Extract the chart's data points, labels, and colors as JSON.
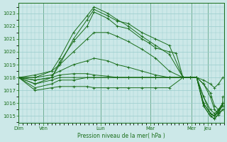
{
  "background_color": "#cce8e8",
  "grid_color": "#99cccc",
  "line_color": "#1a6e1a",
  "xlabel": "Pression niveau de la mer( hPa )",
  "ylim": [
    1014.5,
    1023.8
  ],
  "yticks": [
    1015,
    1016,
    1017,
    1018,
    1019,
    1020,
    1021,
    1022,
    1023
  ],
  "day_labels": [
    "Dim",
    "Ven",
    "Lun",
    "Mar",
    "Mer",
    "Jeu"
  ],
  "total_hours": 150,
  "series": [
    {
      "points": [
        [
          0,
          1018.0
        ],
        [
          12,
          1017.5
        ],
        [
          24,
          1018.0
        ],
        [
          30,
          1019.2
        ],
        [
          40,
          1020.8
        ],
        [
          50,
          1022.0
        ],
        [
          55,
          1023.1
        ],
        [
          65,
          1022.6
        ],
        [
          72,
          1022.0
        ],
        [
          80,
          1021.8
        ],
        [
          90,
          1021.0
        ],
        [
          95,
          1020.7
        ],
        [
          100,
          1020.3
        ],
        [
          110,
          1020.0
        ],
        [
          115,
          1019.9
        ],
        [
          120,
          1018.0
        ],
        [
          125,
          1018.0
        ],
        [
          130,
          1018.0
        ],
        [
          135,
          1016.0
        ],
        [
          140,
          1015.2
        ],
        [
          143,
          1015.0
        ],
        [
          146,
          1015.4
        ],
        [
          149,
          1015.8
        ]
      ]
    },
    {
      "points": [
        [
          0,
          1018.0
        ],
        [
          12,
          1017.8
        ],
        [
          24,
          1018.0
        ],
        [
          30,
          1019.0
        ],
        [
          40,
          1021.0
        ],
        [
          50,
          1022.5
        ],
        [
          55,
          1023.3
        ],
        [
          65,
          1022.8
        ],
        [
          72,
          1022.4
        ],
        [
          80,
          1022.2
        ],
        [
          90,
          1021.5
        ],
        [
          100,
          1021.0
        ],
        [
          110,
          1020.5
        ],
        [
          120,
          1018.0
        ],
        [
          125,
          1018.0
        ],
        [
          130,
          1018.0
        ],
        [
          135,
          1016.5
        ],
        [
          140,
          1015.2
        ],
        [
          143,
          1015.0
        ],
        [
          146,
          1015.5
        ],
        [
          149,
          1016.0
        ]
      ]
    },
    {
      "points": [
        [
          0,
          1018.0
        ],
        [
          12,
          1018.0
        ],
        [
          24,
          1018.5
        ],
        [
          30,
          1019.5
        ],
        [
          40,
          1021.5
        ],
        [
          50,
          1022.8
        ],
        [
          55,
          1023.5
        ],
        [
          65,
          1023.0
        ],
        [
          72,
          1022.5
        ],
        [
          80,
          1022.0
        ],
        [
          90,
          1021.2
        ],
        [
          100,
          1020.5
        ],
        [
          110,
          1019.8
        ],
        [
          120,
          1018.0
        ],
        [
          125,
          1018.0
        ],
        [
          130,
          1018.0
        ],
        [
          135,
          1015.8
        ],
        [
          140,
          1015.0
        ],
        [
          143,
          1014.8
        ],
        [
          146,
          1015.2
        ],
        [
          149,
          1016.0
        ]
      ]
    },
    {
      "points": [
        [
          0,
          1018.0
        ],
        [
          12,
          1018.2
        ],
        [
          24,
          1018.5
        ],
        [
          30,
          1019.0
        ],
        [
          40,
          1020.0
        ],
        [
          50,
          1021.0
        ],
        [
          55,
          1021.5
        ],
        [
          65,
          1021.5
        ],
        [
          72,
          1021.2
        ],
        [
          80,
          1020.8
        ],
        [
          90,
          1020.2
        ],
        [
          100,
          1019.5
        ],
        [
          110,
          1018.5
        ],
        [
          120,
          1018.0
        ],
        [
          125,
          1018.0
        ],
        [
          130,
          1018.0
        ],
        [
          135,
          1017.5
        ],
        [
          140,
          1016.8
        ],
        [
          143,
          1015.8
        ],
        [
          146,
          1015.5
        ],
        [
          149,
          1015.8
        ],
        [
          149,
          1016.5
        ]
      ]
    },
    {
      "points": [
        [
          0,
          1018.0
        ],
        [
          12,
          1018.0
        ],
        [
          24,
          1018.2
        ],
        [
          30,
          1018.5
        ],
        [
          40,
          1019.0
        ],
        [
          50,
          1019.3
        ],
        [
          55,
          1019.5
        ],
        [
          65,
          1019.3
        ],
        [
          72,
          1019.0
        ],
        [
          80,
          1018.8
        ],
        [
          90,
          1018.5
        ],
        [
          100,
          1018.2
        ],
        [
          110,
          1018.0
        ],
        [
          120,
          1018.0
        ],
        [
          125,
          1018.0
        ],
        [
          130,
          1018.0
        ],
        [
          135,
          1017.8
        ],
        [
          140,
          1017.5
        ],
        [
          143,
          1017.2
        ],
        [
          146,
          1017.5
        ],
        [
          149,
          1018.0
        ]
      ]
    },
    {
      "points": [
        [
          0,
          1018.0
        ],
        [
          12,
          1017.8
        ],
        [
          24,
          1018.0
        ],
        [
          30,
          1018.2
        ],
        [
          40,
          1018.3
        ],
        [
          50,
          1018.3
        ],
        [
          55,
          1018.2
        ],
        [
          65,
          1018.1
        ],
        [
          72,
          1018.0
        ],
        [
          80,
          1018.0
        ],
        [
          90,
          1018.0
        ],
        [
          100,
          1018.0
        ],
        [
          110,
          1018.0
        ],
        [
          120,
          1018.0
        ],
        [
          125,
          1018.0
        ],
        [
          130,
          1018.0
        ],
        [
          135,
          1017.5
        ],
        [
          140,
          1016.5
        ],
        [
          143,
          1015.5
        ],
        [
          146,
          1015.2
        ],
        [
          149,
          1015.5
        ]
      ]
    },
    {
      "points": [
        [
          0,
          1018.0
        ],
        [
          12,
          1017.5
        ],
        [
          24,
          1017.8
        ],
        [
          30,
          1018.0
        ],
        [
          40,
          1018.0
        ],
        [
          50,
          1018.0
        ],
        [
          55,
          1018.0
        ],
        [
          65,
          1018.0
        ],
        [
          72,
          1018.0
        ],
        [
          80,
          1018.0
        ],
        [
          90,
          1018.0
        ],
        [
          100,
          1018.0
        ],
        [
          110,
          1018.0
        ],
        [
          120,
          1018.0
        ],
        [
          125,
          1018.0
        ],
        [
          130,
          1018.0
        ],
        [
          135,
          1016.5
        ],
        [
          140,
          1015.5
        ],
        [
          143,
          1015.2
        ],
        [
          146,
          1015.5
        ],
        [
          149,
          1016.0
        ]
      ]
    },
    {
      "points": [
        [
          0,
          1018.0
        ],
        [
          12,
          1017.2
        ],
        [
          24,
          1017.5
        ],
        [
          30,
          1017.8
        ],
        [
          40,
          1017.8
        ],
        [
          50,
          1018.0
        ],
        [
          55,
          1018.0
        ],
        [
          65,
          1018.0
        ],
        [
          72,
          1018.0
        ],
        [
          80,
          1018.0
        ],
        [
          90,
          1018.0
        ],
        [
          100,
          1018.0
        ],
        [
          110,
          1018.0
        ],
        [
          120,
          1018.0
        ],
        [
          125,
          1018.0
        ],
        [
          130,
          1018.0
        ],
        [
          135,
          1016.0
        ],
        [
          140,
          1015.2
        ],
        [
          143,
          1015.0
        ],
        [
          146,
          1015.3
        ],
        [
          149,
          1015.8
        ]
      ]
    },
    {
      "points": [
        [
          0,
          1018.0
        ],
        [
          12,
          1017.0
        ],
        [
          24,
          1017.2
        ],
        [
          30,
          1017.3
        ],
        [
          40,
          1017.3
        ],
        [
          50,
          1017.3
        ],
        [
          55,
          1017.2
        ],
        [
          65,
          1017.2
        ],
        [
          72,
          1017.2
        ],
        [
          80,
          1017.2
        ],
        [
          90,
          1017.2
        ],
        [
          100,
          1017.2
        ],
        [
          110,
          1017.2
        ],
        [
          120,
          1018.0
        ],
        [
          125,
          1018.0
        ],
        [
          130,
          1018.0
        ],
        [
          135,
          1015.8
        ],
        [
          140,
          1015.0
        ],
        [
          143,
          1014.8
        ],
        [
          146,
          1015.1
        ],
        [
          149,
          1015.5
        ]
      ]
    }
  ]
}
